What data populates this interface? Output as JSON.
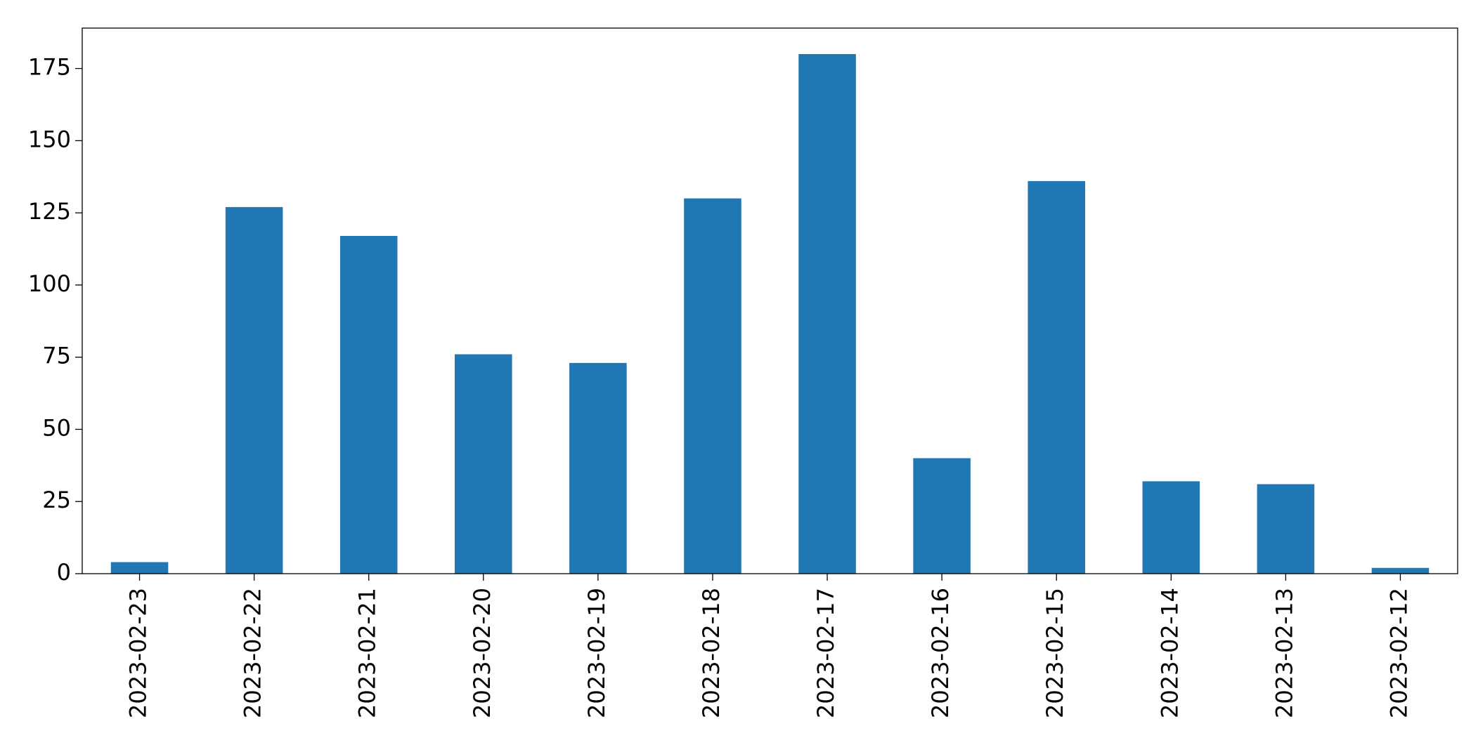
{
  "chart_data": {
    "type": "bar",
    "categories": [
      "2023-02-23",
      "2023-02-22",
      "2023-02-21",
      "2023-02-20",
      "2023-02-19",
      "2023-02-18",
      "2023-02-17",
      "2023-02-16",
      "2023-02-15",
      "2023-02-14",
      "2023-02-13",
      "2023-02-12"
    ],
    "values": [
      4,
      127,
      117,
      76,
      73,
      130,
      180,
      40,
      136,
      32,
      31,
      2
    ],
    "color": "#1f77b4",
    "ylim": [
      0,
      189
    ],
    "yticks": [
      0,
      25,
      50,
      75,
      100,
      125,
      150,
      175
    ],
    "grid": false
  }
}
